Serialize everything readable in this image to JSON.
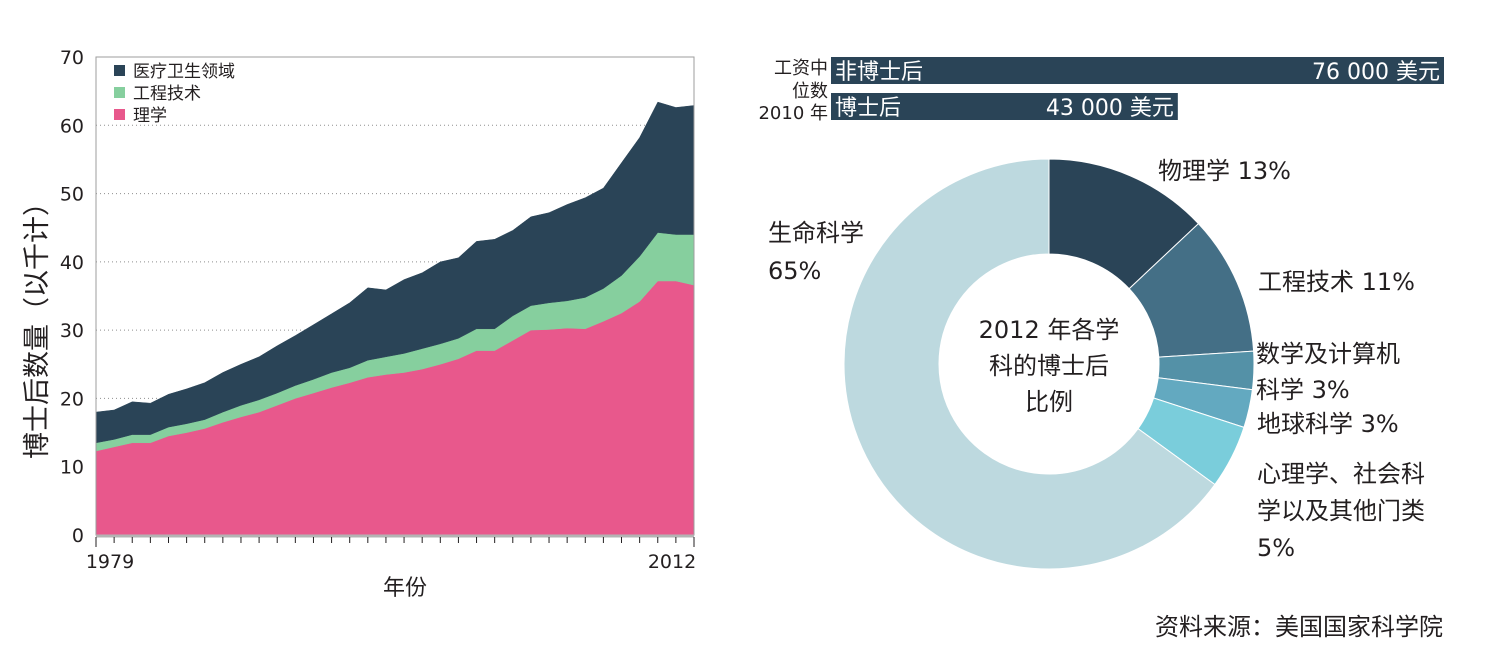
{
  "chart_data": [
    {
      "type": "area",
      "stacked": true,
      "xlabel": "年份",
      "ylabel": "博士后数量（以千计）",
      "ylim": [
        0,
        70
      ],
      "yticks": [
        0,
        10,
        20,
        30,
        40,
        50,
        60,
        70
      ],
      "xtick_labels": [
        "1979",
        "2012"
      ],
      "grid": "horizontal-dotted",
      "legend_position": "top-left",
      "x": [
        1979,
        1980,
        1981,
        1982,
        1983,
        1984,
        1985,
        1986,
        1987,
        1988,
        1989,
        1990,
        1991,
        1992,
        1993,
        1994,
        1995,
        1996,
        1997,
        1998,
        1999,
        2000,
        2001,
        2002,
        2003,
        2004,
        2005,
        2006,
        2007,
        2008,
        2009,
        2010,
        2011,
        2012
      ],
      "series": [
        {
          "name": "理学",
          "color": "#e8588c",
          "values": [
            12.3,
            12.9,
            13.5,
            13.5,
            14.5,
            15.0,
            15.6,
            16.5,
            17.3,
            18.0,
            19.0,
            20.0,
            20.8,
            21.6,
            22.3,
            23.1,
            23.5,
            23.8,
            24.3,
            25.0,
            25.8,
            27.0,
            27.0,
            28.5,
            30.0,
            30.1,
            30.3,
            30.2,
            31.3,
            32.5,
            34.2,
            37.2,
            37.2,
            36.6
          ]
        },
        {
          "name": "工程技术",
          "color": "#86cf9e",
          "values": [
            1.2,
            1.1,
            1.2,
            1.2,
            1.3,
            1.3,
            1.3,
            1.5,
            1.7,
            1.8,
            1.8,
            1.9,
            2.0,
            2.2,
            2.2,
            2.5,
            2.6,
            2.8,
            3.0,
            3.0,
            3.0,
            3.2,
            3.2,
            3.6,
            3.6,
            3.9,
            4.0,
            4.6,
            4.8,
            5.5,
            6.6,
            7.1,
            6.8,
            7.4
          ]
        },
        {
          "name": "医疗卫生领域",
          "color": "#2a4457",
          "values": [
            4.5,
            4.3,
            4.8,
            4.6,
            4.8,
            5.1,
            5.4,
            5.8,
            6.0,
            6.3,
            6.9,
            7.3,
            8.0,
            8.6,
            9.5,
            10.6,
            9.8,
            10.8,
            11.1,
            12.0,
            11.8,
            12.8,
            13.1,
            12.5,
            13.0,
            13.2,
            14.1,
            14.6,
            14.7,
            16.5,
            17.4,
            19.1,
            18.6,
            18.9
          ]
        }
      ]
    },
    {
      "type": "bar",
      "orientation": "horizontal",
      "title_lines": [
        "工资中",
        "位数",
        "2010 年"
      ],
      "categories": [
        "非博士后",
        "博士后"
      ],
      "values": [
        76000,
        43000
      ],
      "value_labels": [
        "76 000 美元",
        "43 000 美元"
      ],
      "color": "#2a4457"
    },
    {
      "type": "pie",
      "donut": true,
      "center_label_lines": [
        "2012 年各学",
        "科的博士后",
        "比例"
      ],
      "slices": [
        {
          "label_lines": [
            "物理学 13%"
          ],
          "value": 13,
          "color": "#2a4457"
        },
        {
          "label_lines": [
            "工程技术 11%"
          ],
          "value": 11,
          "color": "#446f86"
        },
        {
          "label_lines": [
            "数学及计算机",
            "科学 3%"
          ],
          "value": 3,
          "color": "#5491a7"
        },
        {
          "label_lines": [
            "地球科学 3%"
          ],
          "value": 3,
          "color": "#63a9c0"
        },
        {
          "label_lines": [
            "心理学、社会科",
            "学以及其他门类",
            "5%"
          ],
          "value": 5,
          "color": "#7acddb"
        },
        {
          "label_lines": [
            "生命科学",
            "65%"
          ],
          "value": 65,
          "color": "#bdd9df"
        }
      ]
    }
  ],
  "source_note": "资料来源：美国国家科学院"
}
